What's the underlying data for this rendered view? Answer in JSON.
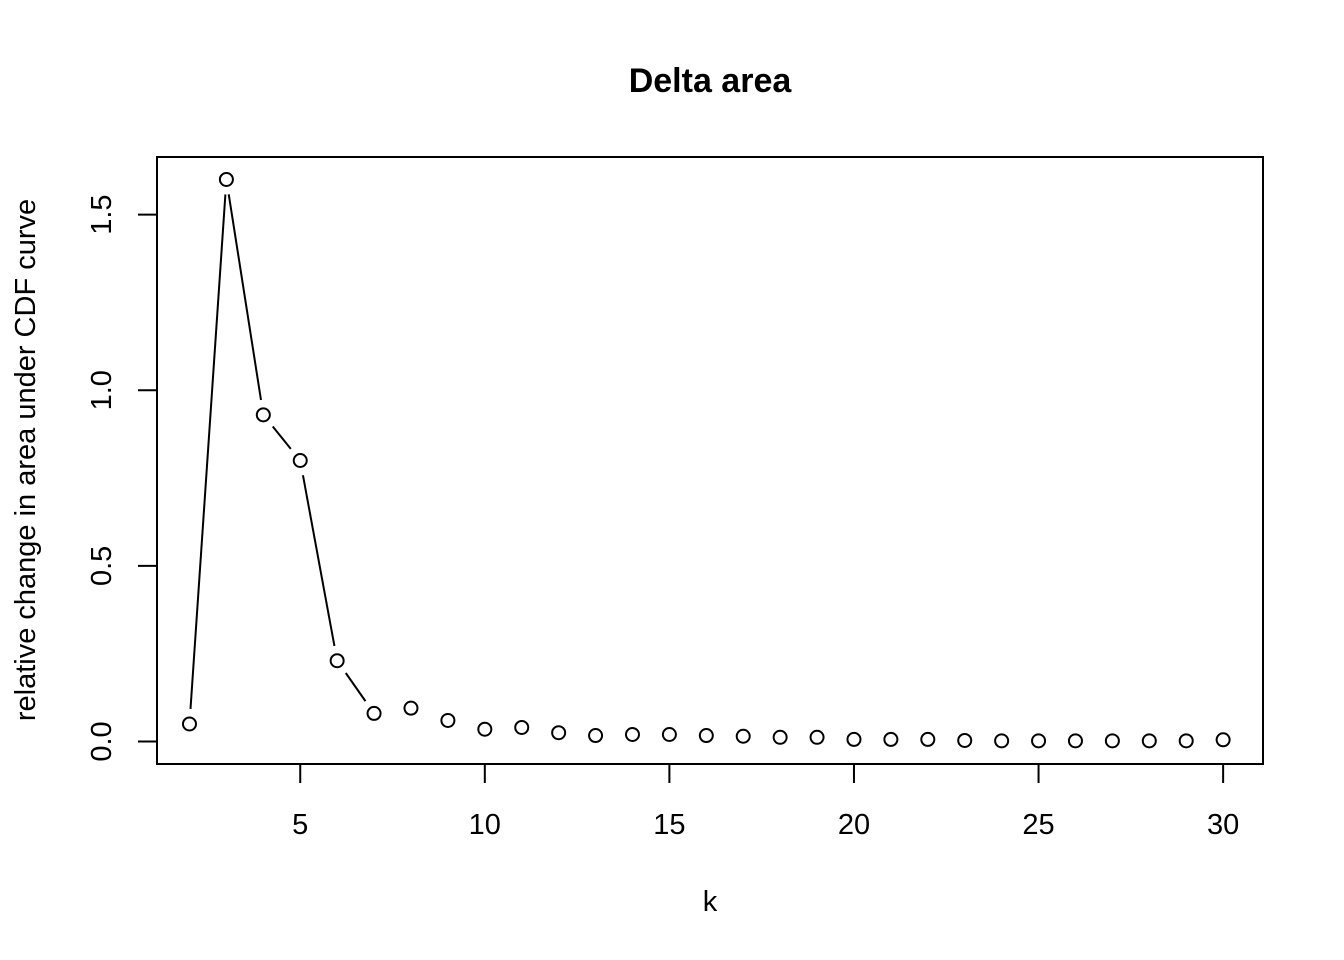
{
  "chart_data": {
    "type": "line",
    "title": "Delta area",
    "xlabel": "k",
    "ylabel": "relative change in area under CDF curve",
    "x": [
      2,
      3,
      4,
      5,
      6,
      7,
      8,
      9,
      10,
      11,
      12,
      13,
      14,
      15,
      16,
      17,
      18,
      19,
      20,
      21,
      22,
      23,
      24,
      25,
      26,
      27,
      28,
      29,
      30
    ],
    "values": [
      0.05,
      1.6,
      0.93,
      0.8,
      0.23,
      0.08,
      0.095,
      0.06,
      0.035,
      0.04,
      0.025,
      0.017,
      0.02,
      0.02,
      0.017,
      0.015,
      0.012,
      0.012,
      0.006,
      0.006,
      0.006,
      0.003,
      0.002,
      0.002,
      0.002,
      0.002,
      0.002,
      0.002,
      0.005
    ],
    "connected_through_k": 7,
    "markers": "open-circle",
    "xlim": [
      1.12,
      31.08
    ],
    "ylim": [
      -0.064,
      1.664
    ],
    "xticks": [
      5,
      10,
      15,
      20,
      25,
      30
    ],
    "yticks": [
      0.0,
      0.5,
      1.0,
      1.5
    ],
    "xtick_labels": [
      "5",
      "10",
      "15",
      "20",
      "25",
      "30"
    ],
    "ytick_labels": [
      "0.0",
      "0.5",
      "1.0",
      "1.5"
    ],
    "grid": false,
    "legend": "none",
    "color": "#000000"
  }
}
